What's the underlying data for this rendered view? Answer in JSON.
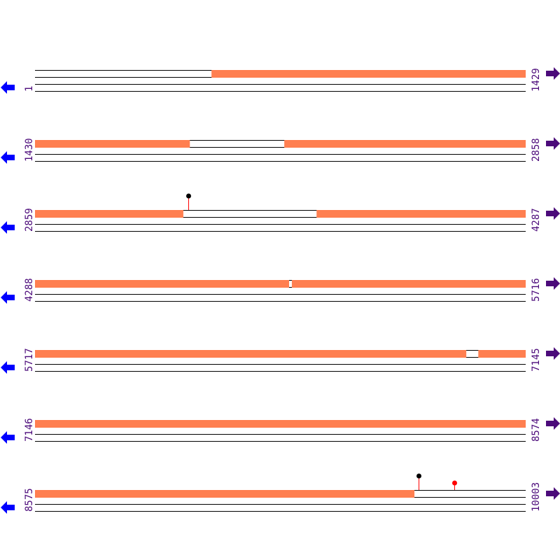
{
  "colors": {
    "feature": "#ff7f50",
    "line": "#000000",
    "left_arrow": "#0000ff",
    "right_arrow": "#4b0a7a",
    "label": "#4b0a7a",
    "marker_black": "#000000",
    "marker_red": "#ff0000",
    "stem": "#ff0000"
  },
  "icons": {
    "left": "arrow-left-icon",
    "right": "arrow-right-icon",
    "marker": "lollipop-marker-icon"
  },
  "rows": [
    {
      "start": "1",
      "end": "1429",
      "features": [
        [
          515,
          1429
        ]
      ],
      "markers": []
    },
    {
      "start": "1430",
      "end": "2858",
      "features": [
        [
          1430,
          1881
        ],
        [
          2156,
          2858
        ]
      ],
      "markers": []
    },
    {
      "start": "2859",
      "end": "4287",
      "features": [
        [
          2859,
          3291
        ],
        [
          3679,
          4287
        ]
      ],
      "markers": [
        {
          "pos": 3306,
          "color": "black"
        }
      ]
    },
    {
      "start": "4288",
      "end": "5716",
      "features": [
        [
          4288,
          5028
        ],
        [
          5036,
          5716
        ]
      ],
      "markers": []
    },
    {
      "start": "5717",
      "end": "7145",
      "features": [
        [
          5717,
          6973
        ],
        [
          7008,
          7145
        ]
      ],
      "markers": []
    },
    {
      "start": "7146",
      "end": "8574",
      "features": [
        [
          7146,
          8574
        ]
      ],
      "markers": []
    },
    {
      "start": "8575",
      "end": "10003",
      "features": [
        [
          8575,
          9680
        ]
      ],
      "markers": [
        {
          "pos": 9692,
          "color": "black"
        },
        {
          "pos": 9796,
          "color": "red"
        }
      ]
    }
  ]
}
